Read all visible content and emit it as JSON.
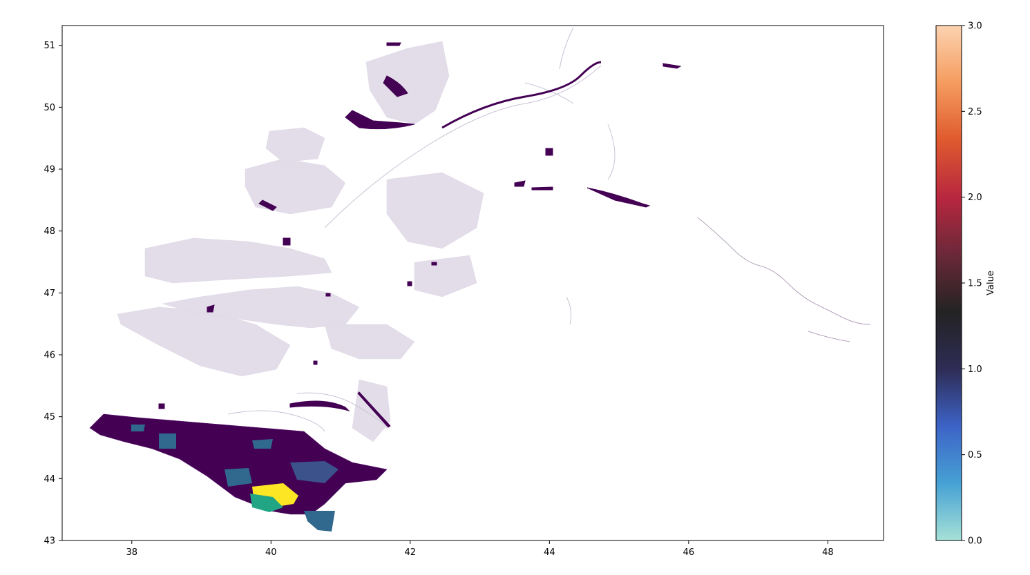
{
  "map": {
    "x_ticks": [
      {
        "value": 38,
        "label": "38"
      },
      {
        "value": 40,
        "label": "40"
      },
      {
        "value": 42,
        "label": "42"
      },
      {
        "value": 44,
        "label": "44"
      },
      {
        "value": 46,
        "label": "46"
      },
      {
        "value": 48,
        "label": "48"
      }
    ],
    "y_ticks": [
      {
        "value": 43,
        "label": "43"
      },
      {
        "value": 44,
        "label": "44"
      },
      {
        "value": 45,
        "label": "45"
      },
      {
        "value": 46,
        "label": "46"
      },
      {
        "value": 47,
        "label": "47"
      },
      {
        "value": 48,
        "label": "48"
      },
      {
        "value": 49,
        "label": "49"
      },
      {
        "value": 50,
        "label": "50"
      },
      {
        "value": 51,
        "label": "51"
      }
    ],
    "x_range": [
      37.0,
      48.8
    ],
    "y_range": [
      43.0,
      51.32
    ],
    "fill_colors": {
      "dense": "#440154",
      "dark_blue": "#3b528b",
      "teal_blue": "#31688e",
      "green": "#21a585",
      "yellow": "#fde725",
      "faint": "#c9bfd6"
    }
  },
  "colorbar": {
    "label": "Value",
    "range": [
      0.0,
      3.0
    ],
    "ticks": [
      {
        "value": 0.0,
        "label": "0.0"
      },
      {
        "value": 0.5,
        "label": "0.5"
      },
      {
        "value": 1.0,
        "label": "1.0"
      },
      {
        "value": 1.5,
        "label": "1.5"
      },
      {
        "value": 2.0,
        "label": "2.0"
      },
      {
        "value": 2.5,
        "label": "2.5"
      },
      {
        "value": 3.0,
        "label": "3.0"
      }
    ],
    "colormap": [
      "#a6e1d7",
      "#46a1d4",
      "#3d63c7",
      "#2e2c55",
      "#232323",
      "#6b2839",
      "#b8273f",
      "#df5a2e",
      "#f59c5f",
      "#fcd3b0"
    ]
  }
}
